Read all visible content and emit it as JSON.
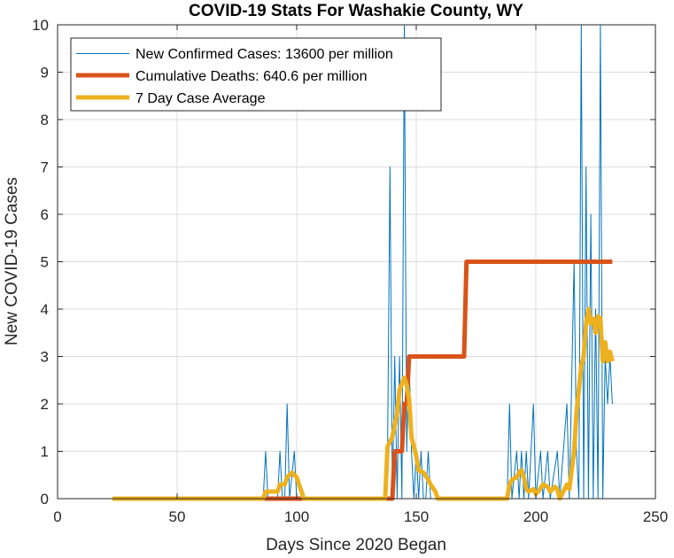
{
  "chart_data": {
    "type": "line",
    "title": "COVID-19 Stats For Washakie County, WY",
    "xlabel": "Days Since 2020 Began",
    "ylabel": "New COVID-19 Cases",
    "xlim": [
      0,
      250
    ],
    "ylim": [
      0,
      10
    ],
    "xticks": [
      "0",
      "50",
      "100",
      "150",
      "200",
      "250"
    ],
    "yticks": [
      "0",
      "1",
      "2",
      "3",
      "4",
      "5",
      "6",
      "7",
      "8",
      "9",
      "10"
    ],
    "grid": true,
    "legend_position": "top-left",
    "series": [
      {
        "name": "New Confirmed Cases: 13600 per million",
        "color": "#0072bd",
        "width": "thin",
        "points": [
          [
            23,
            0
          ],
          [
            86,
            0
          ],
          [
            87,
            1
          ],
          [
            88,
            0
          ],
          [
            92,
            0
          ],
          [
            93,
            1
          ],
          [
            94,
            0
          ],
          [
            95,
            0
          ],
          [
            96,
            2
          ],
          [
            97,
            0
          ],
          [
            99,
            1
          ],
          [
            100,
            0
          ],
          [
            104,
            0
          ],
          [
            137,
            0
          ],
          [
            138,
            1
          ],
          [
            139,
            7
          ],
          [
            140,
            0
          ],
          [
            141,
            3
          ],
          [
            142,
            0
          ],
          [
            143,
            3
          ],
          [
            144,
            0
          ],
          [
            145,
            10
          ],
          [
            146,
            1
          ],
          [
            147,
            3
          ],
          [
            148,
            1
          ],
          [
            149,
            0
          ],
          [
            150,
            1
          ],
          [
            151,
            0
          ],
          [
            152,
            1
          ],
          [
            153,
            0
          ],
          [
            154,
            0
          ],
          [
            155,
            1
          ],
          [
            156,
            0
          ],
          [
            170,
            0
          ],
          [
            188,
            0
          ],
          [
            189,
            2
          ],
          [
            190,
            0
          ],
          [
            192,
            1
          ],
          [
            193,
            0
          ],
          [
            194,
            1
          ],
          [
            195,
            0
          ],
          [
            196,
            1
          ],
          [
            197,
            0
          ],
          [
            199,
            2
          ],
          [
            200,
            0
          ],
          [
            202,
            1
          ],
          [
            203,
            0
          ],
          [
            205,
            1
          ],
          [
            206,
            0
          ],
          [
            209,
            1
          ],
          [
            210,
            0
          ],
          [
            213,
            2
          ],
          [
            214,
            0
          ],
          [
            216,
            5
          ],
          [
            217,
            1
          ],
          [
            218,
            0
          ],
          [
            219,
            10
          ],
          [
            220,
            0
          ],
          [
            221,
            7
          ],
          [
            222,
            0
          ],
          [
            223,
            6
          ],
          [
            224,
            0
          ],
          [
            225,
            4
          ],
          [
            226,
            0
          ],
          [
            227,
            10
          ],
          [
            228,
            0
          ],
          [
            229,
            3
          ],
          [
            230,
            2
          ],
          [
            231,
            3
          ],
          [
            232,
            2
          ]
        ]
      },
      {
        "name": "Cumulative Deaths: 640.6 per million",
        "color": "#d95319",
        "width": "thick",
        "points": [
          [
            23,
            0
          ],
          [
            140,
            0
          ],
          [
            141,
            1
          ],
          [
            144,
            1
          ],
          [
            145,
            2
          ],
          [
            146,
            2
          ],
          [
            147,
            3
          ],
          [
            170,
            3
          ],
          [
            171,
            5
          ],
          [
            232,
            5
          ]
        ]
      },
      {
        "name": "7 Day Case Average",
        "color": "#edb120",
        "width": "thick",
        "points": [
          [
            23,
            0
          ],
          [
            86,
            0
          ],
          [
            87,
            0.15
          ],
          [
            92,
            0.15
          ],
          [
            93,
            0.3
          ],
          [
            95,
            0.3
          ],
          [
            96,
            0.45
          ],
          [
            98,
            0.55
          ],
          [
            100,
            0.45
          ],
          [
            101,
            0.3
          ],
          [
            102,
            0.15
          ],
          [
            103,
            0
          ],
          [
            137,
            0
          ],
          [
            138,
            1.1
          ],
          [
            140,
            1.3
          ],
          [
            142,
            1.8
          ],
          [
            143,
            2.3
          ],
          [
            145,
            2.55
          ],
          [
            146,
            2.4
          ],
          [
            147,
            2.1
          ],
          [
            148,
            1.3
          ],
          [
            150,
            0.9
          ],
          [
            151,
            0.6
          ],
          [
            153,
            0.55
          ],
          [
            155,
            0.4
          ],
          [
            156,
            0.3
          ],
          [
            158,
            0.15
          ],
          [
            159,
            0
          ],
          [
            188,
            0
          ],
          [
            189,
            0.3
          ],
          [
            190,
            0.4
          ],
          [
            192,
            0.45
          ],
          [
            193,
            0.55
          ],
          [
            194,
            0.6
          ],
          [
            195,
            0.45
          ],
          [
            196,
            0.2
          ],
          [
            197,
            0.15
          ],
          [
            199,
            0.2
          ],
          [
            200,
            0.1
          ],
          [
            201,
            0.15
          ],
          [
            203,
            0.3
          ],
          [
            205,
            0.25
          ],
          [
            206,
            0.15
          ],
          [
            208,
            0.25
          ],
          [
            209,
            0.2
          ],
          [
            210,
            0
          ],
          [
            213,
            0.3
          ],
          [
            214,
            0.2
          ],
          [
            216,
            1.0
          ],
          [
            217,
            1.8
          ],
          [
            219,
            2.8
          ],
          [
            220,
            3.0
          ],
          [
            221,
            3.7
          ],
          [
            222,
            4.0
          ],
          [
            223,
            3.7
          ],
          [
            224,
            3.8
          ],
          [
            225,
            3.5
          ],
          [
            226,
            3.85
          ],
          [
            227,
            3.8
          ],
          [
            228,
            2.9
          ],
          [
            229,
            3.3
          ],
          [
            230,
            2.9
          ],
          [
            231,
            3.1
          ],
          [
            232,
            2.9
          ]
        ]
      }
    ]
  }
}
